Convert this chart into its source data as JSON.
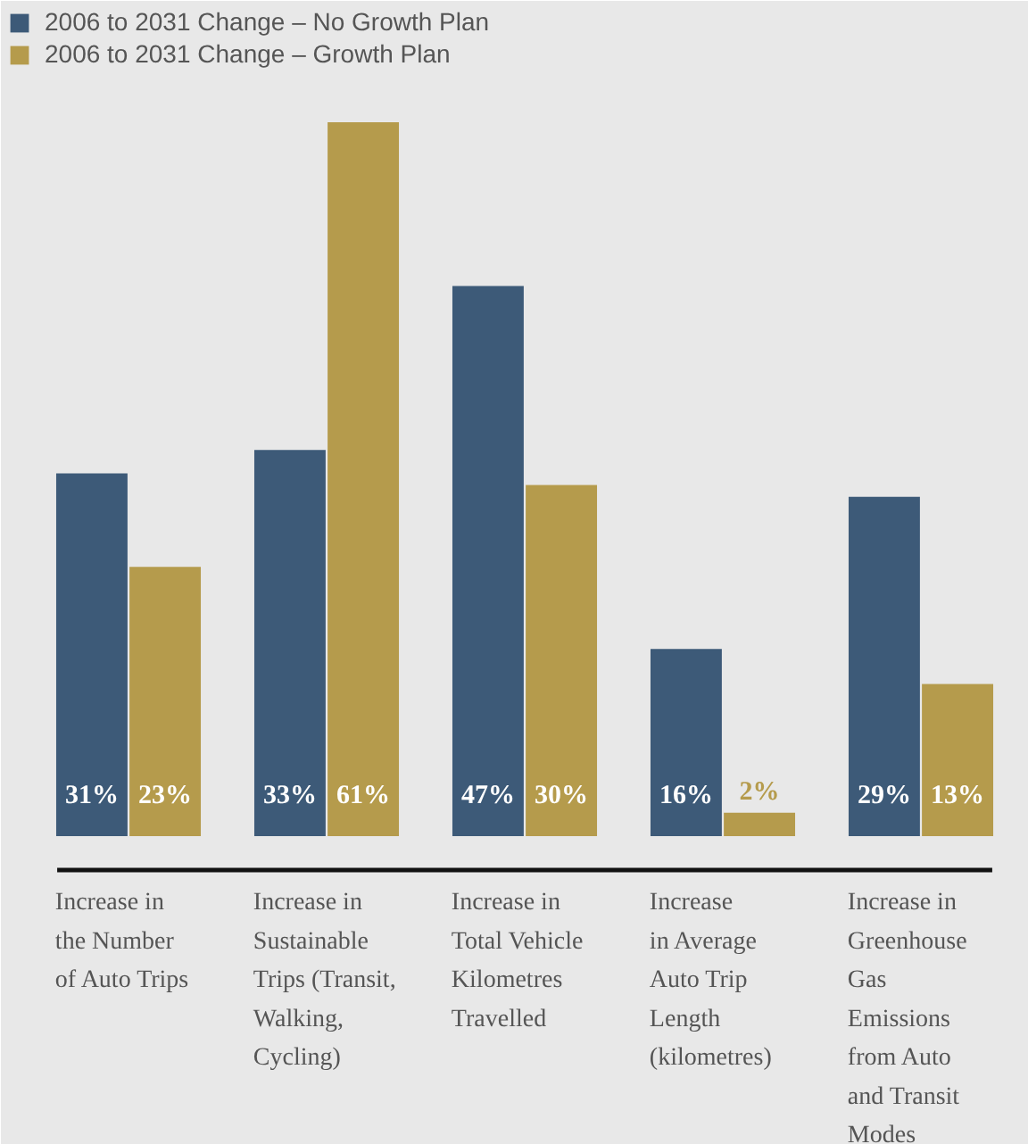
{
  "chart_data": {
    "type": "bar",
    "categories": [
      "Increase in\nthe Number\nof Auto Trips",
      "Increase in\nSustainable\nTrips (Transit,\nWalking,\nCycling)",
      "Increase in\nTotal Vehicle\nKilometres\nTravelled",
      "Increase\nin Average\nAuto Trip\nLength\n(kilometres)",
      "Increase in\nGreenhouse\nGas\nEmissions\nfrom Auto\nand Transit\nModes"
    ],
    "series": [
      {
        "name": "2006 to 2031 Change – No Growth Plan",
        "color": "#3d5a78",
        "values": [
          31,
          33,
          47,
          16,
          29
        ],
        "value_labels": [
          "31%",
          "33%",
          "47%",
          "16%",
          "29%"
        ]
      },
      {
        "name": "2006 to 2031 Change – Growth Plan",
        "color": "#b59b4c",
        "values": [
          23,
          61,
          30,
          2,
          13
        ],
        "value_labels": [
          "23%",
          "61%",
          "30%",
          "2%",
          "13%"
        ]
      }
    ],
    "legend": "top left"
  }
}
